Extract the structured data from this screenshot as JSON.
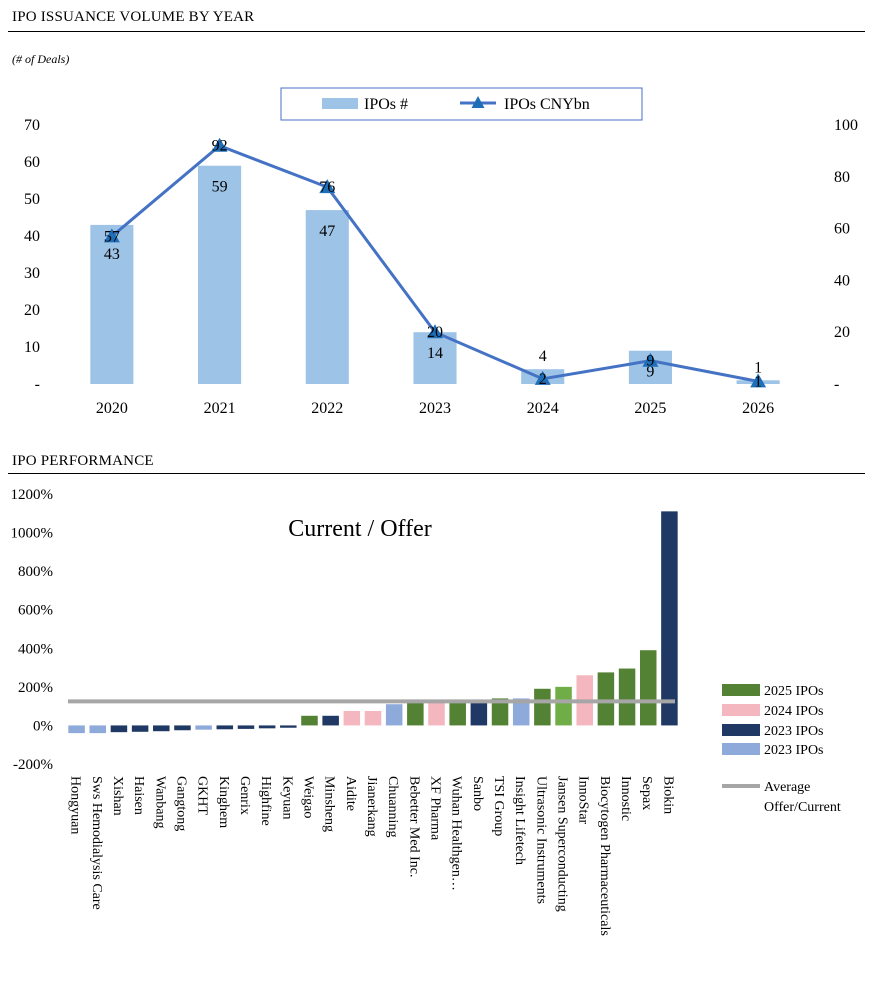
{
  "header1": {
    "title": "IPO ISSUANCE VOLUME BY YEAR",
    "subtitle": "(# of Deals)"
  },
  "header2": {
    "title": "IPO PERFORMANCE"
  },
  "colors": {
    "bar": "#9dc3e6",
    "line": "#4472c4",
    "marker": "#1f6fb8",
    "ipo2025": "#548235",
    "ipo2025_light": "#70ad47",
    "ipo2024": "#f4b6bf",
    "ipo2023": "#1f3864",
    "ipo2023_light": "#8eaadb",
    "average": "#a6a6a6"
  },
  "chart_data": [
    {
      "type": "bar+line",
      "title": "IPO ISSUANCE VOLUME BY YEAR",
      "categories": [
        "2020",
        "2021",
        "2022",
        "2023",
        "2024",
        "2025",
        "2026"
      ],
      "series": [
        {
          "name": "IPOs  #",
          "kind": "bar",
          "axis": "left",
          "values": [
            43,
            59,
            47,
            14,
            4,
            9,
            1
          ]
        },
        {
          "name": "IPOs  CNYbn",
          "kind": "line",
          "axis": "right",
          "values": [
            57,
            92,
            76,
            20,
            2,
            9,
            1
          ]
        }
      ],
      "ylim_left": [
        0,
        70
      ],
      "yticks_left": [
        "-",
        "10",
        "20",
        "30",
        "40",
        "50",
        "60",
        "70"
      ],
      "ylim_right": [
        0,
        100
      ],
      "yticks_right": [
        "-",
        "20",
        "40",
        "60",
        "80",
        "100"
      ],
      "legend": "top-center"
    },
    {
      "type": "bar",
      "title": "Current / Offer",
      "categories": [
        "Hongyuan",
        "Sws Hemodialysis Care",
        "Xishan",
        "Haisen",
        "Wanbang",
        "Gangtong",
        "GKHT",
        "Kinghem",
        "Genrix",
        "Highfine",
        "Keyuan",
        "Weigao",
        "Minsheng",
        "Aidite",
        "Jianerkang",
        "Chuanning",
        "Bebetter Med Inc.",
        "XF Pharma",
        "Wuhan Healthgen…",
        "Sanbo",
        "TSI Group",
        "Insight Lifetech",
        "Ultrasonic Instruments",
        "Jansen Superconducting",
        "InnoStar",
        "Biocytogen Pharmaceuticals",
        "Innostic",
        "Sepax",
        "Biokin"
      ],
      "values": [
        -40,
        -40,
        -35,
        -33,
        -30,
        -25,
        -22,
        -20,
        -18,
        -15,
        -12,
        50,
        50,
        75,
        75,
        110,
        118,
        118,
        122,
        125,
        140,
        140,
        190,
        200,
        260,
        275,
        295,
        390,
        1110
      ],
      "groups": [
        "2023",
        "2023",
        "2023",
        "2023",
        "2023",
        "2023",
        "2023L",
        "2023",
        "2023",
        "2023",
        "2023",
        "2025",
        "2023",
        "2024",
        "2024",
        "2023L",
        "2025",
        "2024",
        "2025",
        "2023",
        "2025",
        "2023L",
        "2025",
        "2025L",
        "2024",
        "2025",
        "2025",
        "2025",
        "2023"
      ],
      "average": 125,
      "ylim": [
        -200,
        1200
      ],
      "yticks": [
        "-200%",
        "0%",
        "200%",
        "400%",
        "600%",
        "800%",
        "1000%",
        "1200%"
      ],
      "legend": [
        "2025 IPOs",
        "2024 IPOs",
        "2023 IPOs",
        "2023 IPOs",
        "Average Offer/Current"
      ],
      "legend_position": "right"
    }
  ]
}
